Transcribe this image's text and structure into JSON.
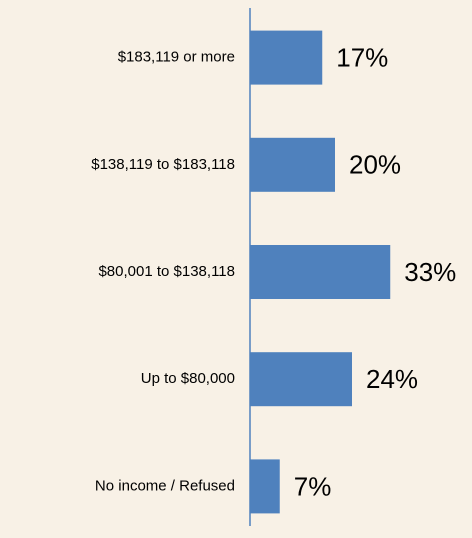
{
  "chart_data": {
    "type": "bar",
    "orientation": "horizontal",
    "categories": [
      "$183,119 or more",
      "$138,119 to $183,118",
      "$80,001 to $138,118",
      "Up to $80,000",
      "No income / Refused"
    ],
    "values": [
      17,
      20,
      33,
      24,
      7
    ],
    "value_labels": [
      "17%",
      "20%",
      "33%",
      "24%",
      "7%"
    ],
    "color": "#4f81bd"
  }
}
